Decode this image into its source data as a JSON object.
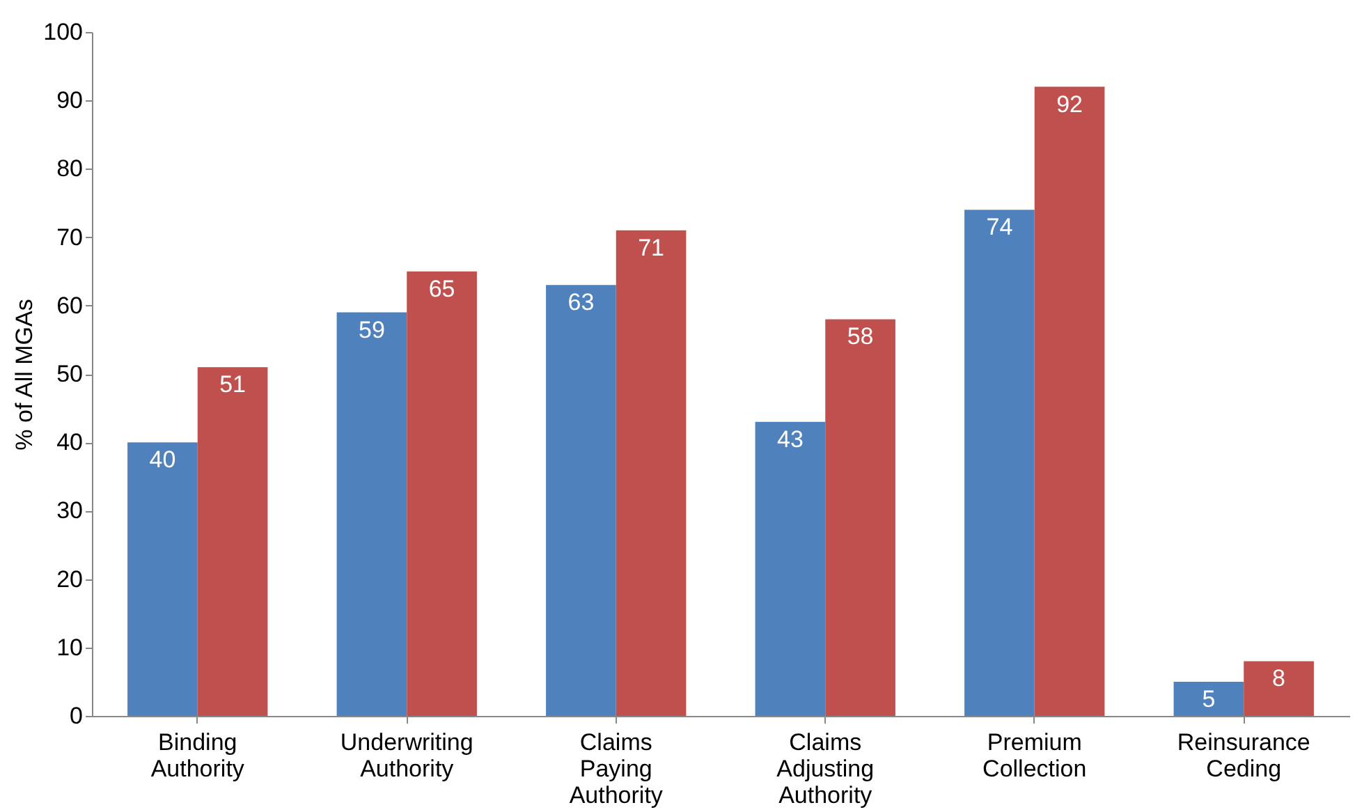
{
  "chart_data": {
    "type": "bar",
    "ylabel": "% of All MGAs",
    "categories": [
      "Binding Authority",
      "Underwriting Authority",
      "Claims Paying Authority",
      "Claims Adjusting Authority",
      "Premium Collection",
      "Reinsurance Ceding"
    ],
    "series": [
      {
        "color": "#4f81bd",
        "values": [
          40,
          59,
          63,
          43,
          74,
          5
        ]
      },
      {
        "color": "#c0504d",
        "values": [
          51,
          65,
          71,
          58,
          92,
          8
        ]
      }
    ],
    "ylim": [
      0,
      100
    ],
    "yticks": [
      0,
      10,
      20,
      30,
      40,
      50,
      60,
      70,
      80,
      90,
      100
    ],
    "grid": false,
    "legend": false,
    "data_labels": true
  }
}
